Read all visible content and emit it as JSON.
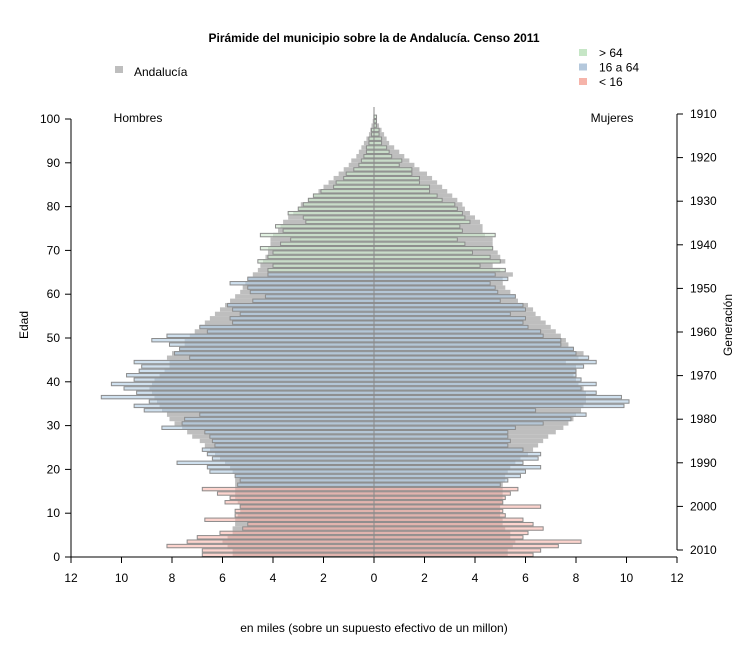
{
  "chart_data": {
    "type": "bar",
    "subtype": "population-pyramid",
    "title": "Pirámide del municipio sobre la de Andalucía. Censo 2011",
    "xlabel": "en miles (sobre un supuesto efectivo de un millon)",
    "ylabel": "Edad",
    "ylabel_right": "Generación",
    "left_side_label": "Hombres",
    "right_side_label": "Mujeres",
    "xlim": [
      -12,
      12
    ],
    "ylim": [
      0,
      100
    ],
    "x_ticks": [
      "12",
      "10",
      "8",
      "6",
      "4",
      "2",
      "0",
      "2",
      "4",
      "6",
      "8",
      "10",
      "12"
    ],
    "y_ticks": [
      "0",
      "10",
      "20",
      "30",
      "40",
      "50",
      "60",
      "70",
      "80",
      "90",
      "100"
    ],
    "y_ticks_right": [
      "2010",
      "2000",
      "1990",
      "1980",
      "1970",
      "1960",
      "1950",
      "1940",
      "1930",
      "1920",
      "1910"
    ],
    "grid": false,
    "legend": {
      "position": "top-right",
      "entries": [
        {
          "label": "> 64",
          "color": "#c6e6c6"
        },
        {
          "label": "16 a 64",
          "color": "#b4c8dc"
        },
        {
          "label": "< 16",
          "color": "#f6b4aa"
        }
      ]
    },
    "reference_legend": {
      "label": "Andalucía",
      "color": "#bebebe"
    },
    "age_groups": [
      {
        "name": "< 16",
        "from": 0,
        "to": 15
      },
      {
        "name": "16 a 64",
        "from": 16,
        "to": 64
      },
      {
        "name": "> 64",
        "from": 65,
        "to": 100
      }
    ],
    "ages": [
      0,
      1,
      2,
      3,
      4,
      5,
      6,
      7,
      8,
      9,
      10,
      11,
      12,
      13,
      14,
      15,
      16,
      17,
      18,
      19,
      20,
      21,
      22,
      23,
      24,
      25,
      26,
      27,
      28,
      29,
      30,
      31,
      32,
      33,
      34,
      35,
      36,
      37,
      38,
      39,
      40,
      41,
      42,
      43,
      44,
      45,
      46,
      47,
      48,
      49,
      50,
      51,
      52,
      53,
      54,
      55,
      56,
      57,
      58,
      59,
      60,
      61,
      62,
      63,
      64,
      65,
      66,
      67,
      68,
      69,
      70,
      71,
      72,
      73,
      74,
      75,
      76,
      77,
      78,
      79,
      80,
      81,
      82,
      83,
      84,
      85,
      86,
      87,
      88,
      89,
      90,
      91,
      92,
      93,
      94,
      95,
      96,
      97,
      98,
      99,
      100
    ],
    "series": [
      {
        "name": "Municipio Hombres",
        "values": [
          6.8,
          6.8,
          8.2,
          7.4,
          7.0,
          6.1,
          5.2,
          5.0,
          6.7,
          5.5,
          5.5,
          5.3,
          5.9,
          5.7,
          6.2,
          6.8,
          5.4,
          5.3,
          5.5,
          6.5,
          6.6,
          7.8,
          6.4,
          6.6,
          6.8,
          6.3,
          6.4,
          6.5,
          6.7,
          8.4,
          7.6,
          7.5,
          6.9,
          9.1,
          9.5,
          8.9,
          10.8,
          9.4,
          9.9,
          10.4,
          9.5,
          9.8,
          9.3,
          9.2,
          9.5,
          7.3,
          7.9,
          7.7,
          8.1,
          8.8,
          8.2,
          6.6,
          6.9,
          5.6,
          5.7,
          5.3,
          5.6,
          5.8,
          4.8,
          4.3,
          4.9,
          5.0,
          5.7,
          5.0,
          4.2,
          4.2,
          4.0,
          4.6,
          4.2,
          4.0,
          4.5,
          3.7,
          3.3,
          4.5,
          3.6,
          3.9,
          2.7,
          2.8,
          3.4,
          3.0,
          2.8,
          2.6,
          2.4,
          2.1,
          1.6,
          1.5,
          1.2,
          1.1,
          0.8,
          0.6,
          0.5,
          0.4,
          0.3,
          0.3,
          0.2,
          0.2,
          0.1,
          0.1,
          0.0,
          0.0,
          0.0
        ]
      },
      {
        "name": "Municipio Mujeres",
        "values": [
          6.3,
          6.6,
          7.3,
          8.2,
          5.9,
          6.1,
          6.7,
          6.3,
          5.9,
          5.2,
          5.1,
          6.6,
          5.1,
          5.2,
          5.4,
          5.7,
          5.0,
          5.3,
          5.8,
          6.0,
          6.6,
          5.9,
          6.5,
          6.6,
          5.9,
          5.3,
          5.4,
          5.3,
          5.3,
          5.6,
          6.7,
          7.8,
          8.4,
          6.4,
          9.9,
          10.1,
          9.8,
          8.8,
          8.2,
          8.8,
          8.2,
          8.0,
          8.0,
          8.3,
          8.8,
          8.5,
          8.0,
          7.9,
          7.4,
          7.4,
          6.7,
          6.6,
          6.1,
          5.9,
          6.0,
          5.4,
          6.0,
          5.9,
          5.0,
          5.6,
          4.9,
          4.8,
          4.6,
          5.3,
          4.8,
          5.2,
          4.2,
          5.0,
          4.6,
          3.9,
          4.7,
          3.6,
          3.3,
          4.8,
          3.5,
          3.4,
          3.8,
          3.6,
          3.5,
          3.3,
          3.2,
          2.7,
          2.5,
          2.2,
          2.2,
          1.8,
          1.8,
          1.5,
          1.5,
          1.0,
          1.1,
          0.7,
          0.6,
          0.5,
          0.3,
          0.3,
          0.2,
          0.2,
          0.1,
          0.1,
          0.1
        ]
      },
      {
        "name": "Andalucía Hombres",
        "values": [
          5.6,
          5.6,
          5.8,
          6.0,
          5.8,
          5.6,
          5.6,
          5.5,
          5.5,
          5.4,
          5.3,
          5.3,
          5.4,
          5.5,
          5.5,
          5.5,
          5.5,
          5.5,
          5.5,
          5.6,
          5.7,
          5.9,
          6.1,
          6.3,
          6.5,
          6.7,
          6.9,
          7.2,
          7.4,
          7.6,
          7.9,
          8.1,
          8.2,
          8.4,
          8.5,
          8.6,
          8.7,
          8.8,
          8.9,
          8.8,
          8.7,
          8.5,
          8.3,
          8.1,
          8.1,
          8.2,
          8.0,
          7.7,
          7.5,
          7.5,
          7.3,
          7.1,
          6.9,
          6.7,
          6.5,
          6.3,
          6.1,
          5.9,
          5.7,
          5.5,
          5.3,
          5.2,
          5.1,
          5.0,
          4.8,
          4.6,
          4.5,
          4.4,
          4.3,
          4.2,
          4.2,
          4.1,
          4.1,
          4.0,
          3.8,
          3.7,
          3.6,
          3.4,
          3.2,
          3.0,
          2.9,
          2.6,
          2.4,
          2.2,
          2.0,
          1.8,
          1.6,
          1.4,
          1.2,
          1.0,
          0.9,
          0.7,
          0.6,
          0.5,
          0.4,
          0.3,
          0.2,
          0.15,
          0.1,
          0.05,
          0.03
        ]
      },
      {
        "name": "Andalucía Mujeres",
        "values": [
          5.3,
          5.3,
          5.5,
          5.6,
          5.4,
          5.4,
          5.2,
          5.1,
          5.1,
          5.0,
          5.0,
          5.0,
          5.1,
          5.1,
          5.1,
          5.1,
          5.1,
          5.2,
          5.2,
          5.3,
          5.4,
          5.6,
          5.8,
          6.1,
          6.3,
          6.5,
          6.7,
          6.9,
          7.2,
          7.5,
          7.7,
          7.9,
          8.0,
          8.2,
          8.3,
          8.4,
          8.4,
          8.4,
          8.3,
          8.1,
          8.0,
          7.9,
          8.0,
          8.0,
          7.6,
          8.1,
          8.3,
          7.9,
          7.7,
          7.6,
          7.4,
          7.2,
          7.0,
          6.8,
          6.6,
          6.4,
          6.3,
          6.1,
          5.7,
          5.6,
          5.4,
          5.2,
          5.1,
          5.1,
          5.5,
          5.0,
          4.7,
          5.2,
          5.0,
          4.9,
          4.7,
          4.7,
          4.7,
          4.4,
          4.3,
          4.3,
          4.2,
          4.0,
          3.8,
          3.6,
          3.5,
          3.3,
          3.1,
          2.9,
          2.7,
          2.5,
          2.3,
          2.1,
          1.8,
          1.6,
          1.4,
          1.2,
          1.0,
          0.8,
          0.6,
          0.5,
          0.4,
          0.3,
          0.2,
          0.1,
          0.05
        ]
      }
    ]
  }
}
